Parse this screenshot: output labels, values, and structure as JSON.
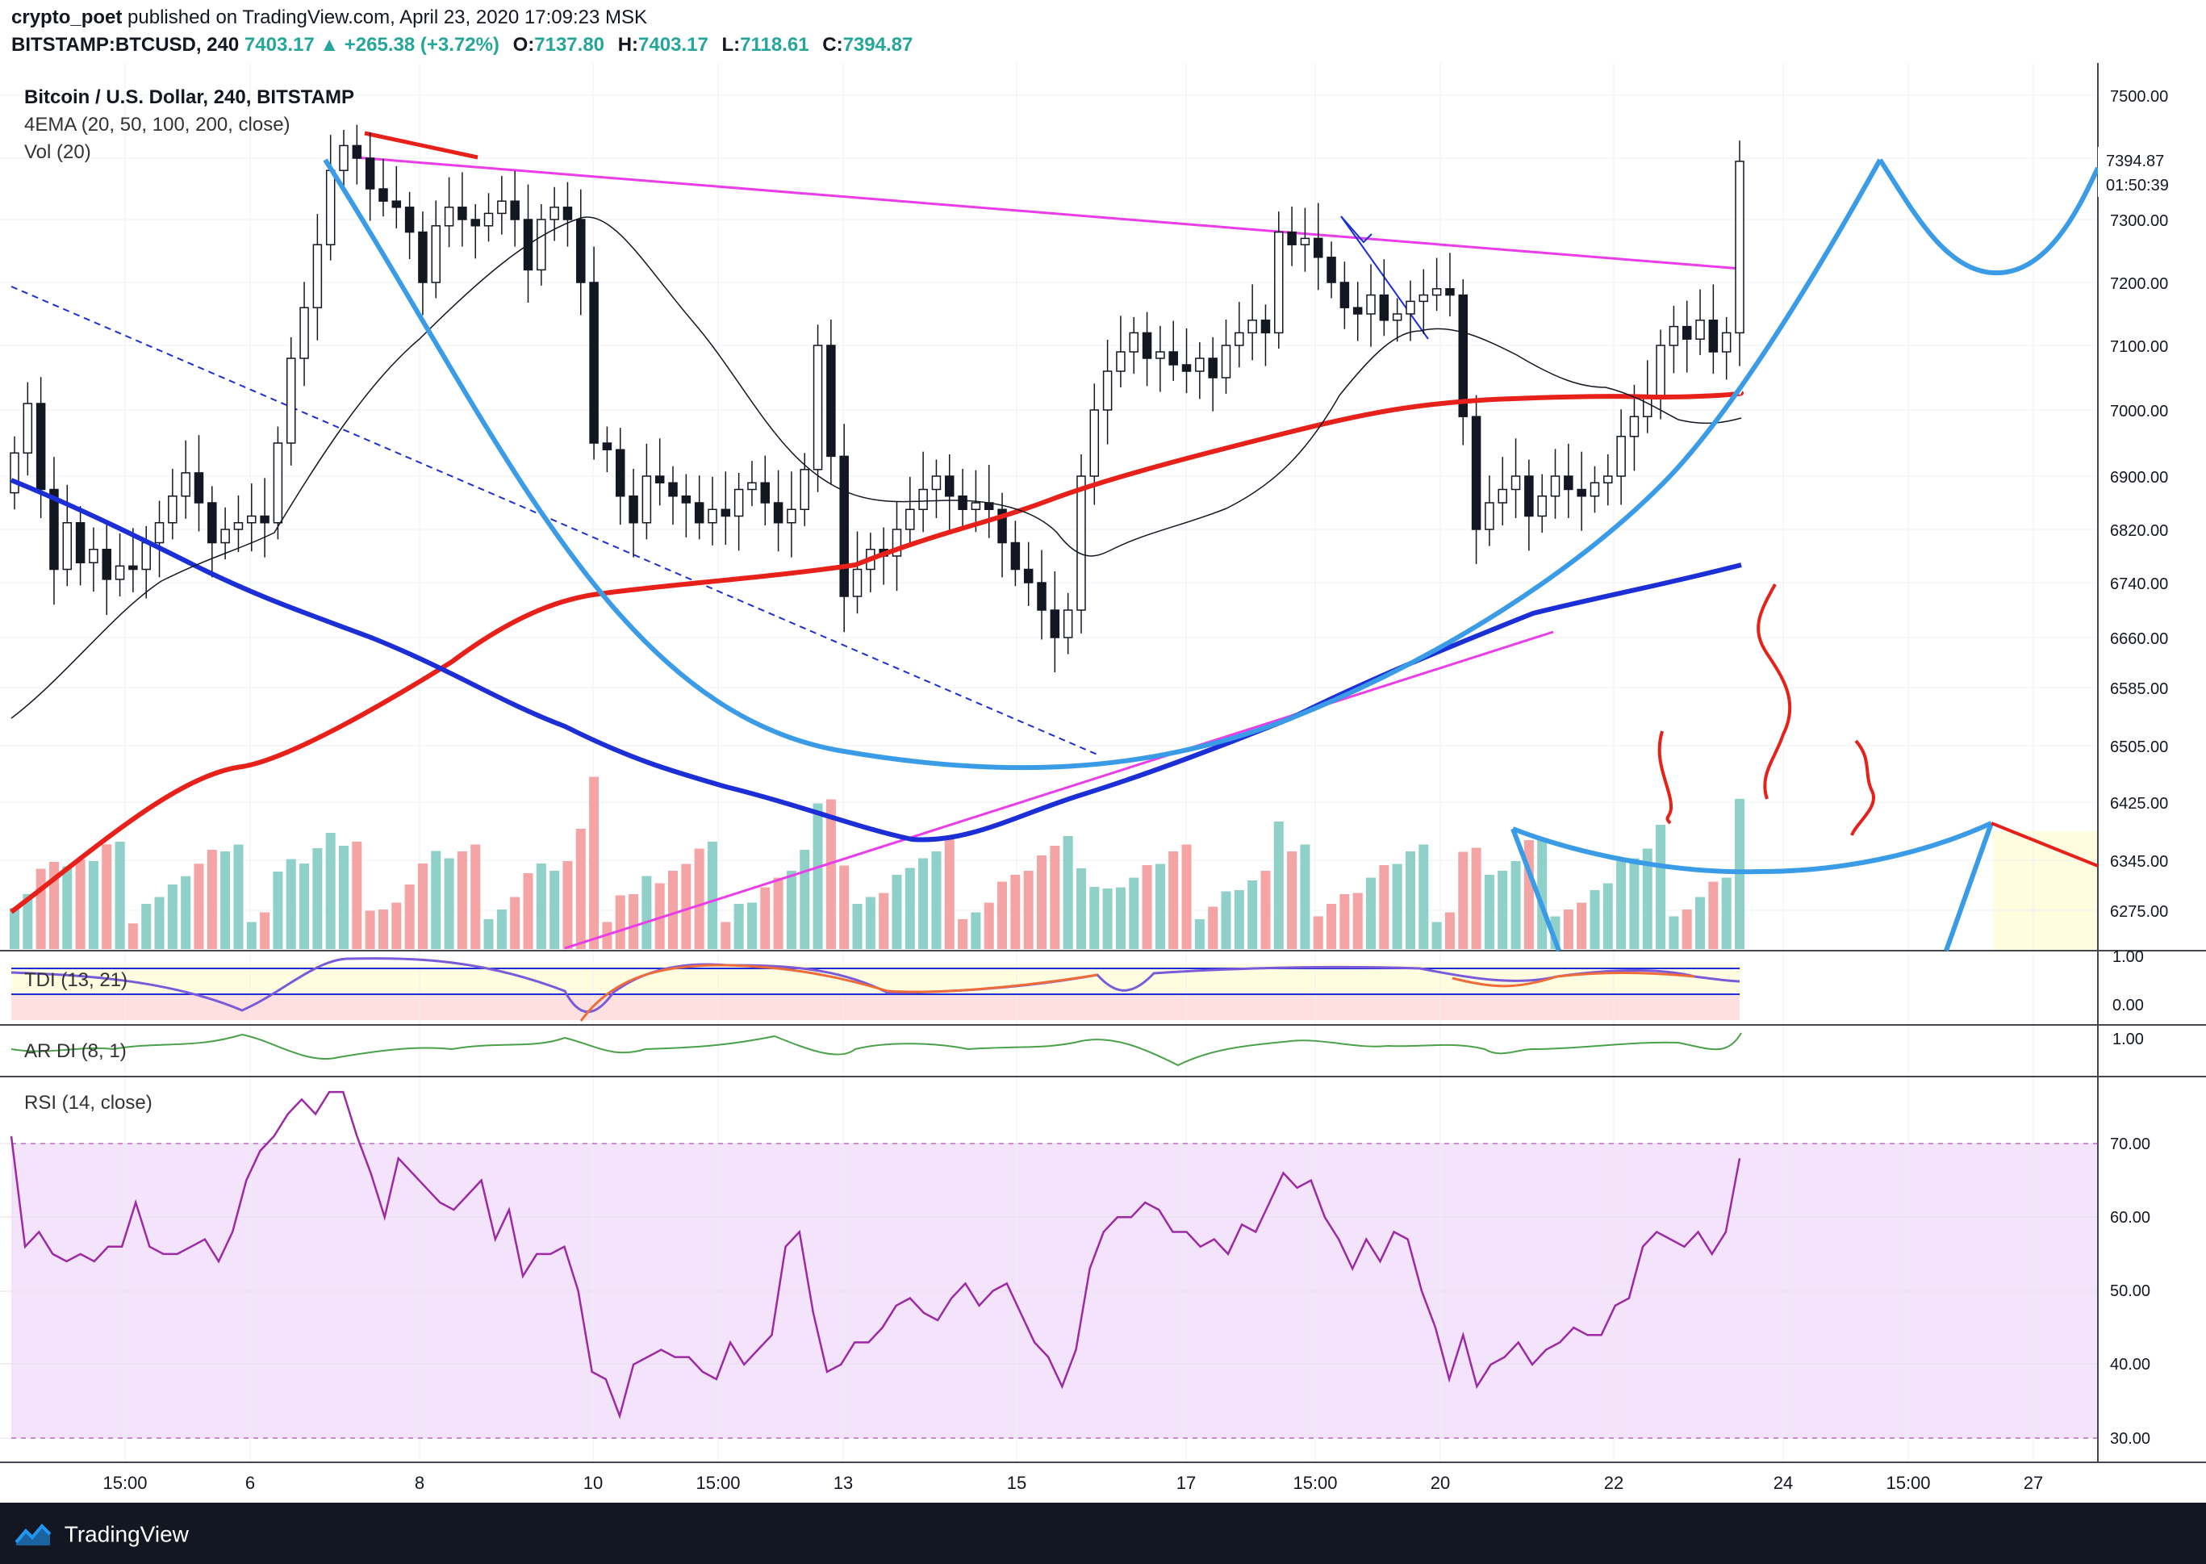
{
  "header": {
    "author": "crypto_poet",
    "published_text": "published on TradingView.com, April 23, 2020 17:09:23 MSK",
    "symbol": "BITSTAMP:BTCUSD, 240",
    "last": "7403.17",
    "change": "▲ +265.38 (+3.72%)",
    "o_label": "O:",
    "o": "7137.80",
    "h_label": "H:",
    "h": "7403.17",
    "l_label": "L:",
    "l": "7118.61",
    "c_label": "C:",
    "c": "7394.87"
  },
  "legends": {
    "title": "Bitcoin / U.S. Dollar, 240, BITSTAMP",
    "ema": "4EMA (20, 50, 100, 200, close)",
    "vol": "Vol (20)",
    "tdi": "TDI (13, 21)",
    "ardi": "AR DI (8, 1)",
    "rsi": "RSI (14, close)"
  },
  "price_badge": {
    "price": "7394.87",
    "countdown": "01:50:39"
  },
  "footer": {
    "brand": "TradingView"
  },
  "colors": {
    "up": "#26a69a",
    "down": "#ef5350",
    "ema_red": "#e8201a",
    "ema_blue": "#1c2fd6",
    "arc_blue": "#3a9be6",
    "magenta": "#ea3ce8",
    "rsi_line": "#9c2aa5",
    "rsi_fill": "#f3e3fb"
  },
  "chart_data": {
    "type": "candlestick",
    "title": "Bitcoin / U.S. Dollar, 240, BITSTAMP",
    "price_ticks": [
      7500,
      7400,
      7300,
      7200,
      7100,
      7000,
      6900,
      6820,
      6740,
      6660,
      6585,
      6505,
      6425,
      6345,
      6275
    ],
    "price_tick_labels": [
      "7500.00",
      "7300.00",
      "7200.00",
      "7100.00",
      "7000.00",
      "6900.00",
      "6820.00",
      "6740.00",
      "6660.00",
      "6585.00",
      "6505.00",
      "6425.00",
      "6345.00",
      "6275.00"
    ],
    "x_labels": [
      "15:00",
      "6",
      "8",
      "10",
      "15:00",
      "13",
      "15",
      "17",
      "15:00",
      "20",
      "22",
      "24",
      "15:00",
      "27"
    ],
    "tdi_labels": [
      "1.00",
      "0.00"
    ],
    "ardi_labels": [
      "1.00"
    ],
    "rsi_labels": [
      "70.00",
      "60.00",
      "50.00",
      "40.00",
      "30.00"
    ],
    "candles_close": [
      6935,
      7010,
      6880,
      6760,
      6830,
      6770,
      6790,
      6745,
      6765,
      6760,
      6800,
      6830,
      6870,
      6905,
      6860,
      6800,
      6820,
      6830,
      6840,
      6830,
      6950,
      7080,
      7160,
      7260,
      7380,
      7420,
      7400,
      7350,
      7330,
      7320,
      7280,
      7200,
      7290,
      7320,
      7300,
      7290,
      7310,
      7330,
      7300,
      7220,
      7300,
      7320,
      7300,
      7200,
      6950,
      6940,
      6870,
      6830,
      6900,
      6890,
      6870,
      6860,
      6830,
      6850,
      6840,
      6880,
      6890,
      6860,
      6830,
      6850,
      6910,
      7100,
      6930,
      6720,
      6760,
      6790,
      6780,
      6820,
      6850,
      6880,
      6900,
      6870,
      6850,
      6860,
      6850,
      6800,
      6760,
      6740,
      6700,
      6660,
      6700,
      6900,
      7000,
      7060,
      7090,
      7120,
      7080,
      7090,
      7070,
      7060,
      7080,
      7050,
      7100,
      7120,
      7140,
      7120,
      7280,
      7260,
      7270,
      7240,
      7200,
      7160,
      7150,
      7180,
      7140,
      7150,
      7170,
      7180,
      7190,
      7180,
      6990,
      6820,
      6860,
      6880,
      6900,
      6840,
      6870,
      6900,
      6880,
      6870,
      6890,
      6900,
      6960,
      6990,
      7020,
      7100,
      7130,
      7110,
      7140,
      7090,
      7120,
      7394.87
    ],
    "rsi_values": [
      71,
      56,
      58,
      55,
      54,
      55,
      54,
      56,
      56,
      62,
      56,
      55,
      55,
      56,
      57,
      54,
      58,
      65,
      69,
      71,
      74,
      76,
      74,
      77,
      77,
      71,
      66,
      60,
      68,
      66,
      64,
      62,
      61,
      63,
      65,
      57,
      61,
      52,
      55,
      55,
      56,
      50,
      39,
      38,
      33,
      40,
      41,
      42,
      41,
      41,
      39,
      38,
      43,
      40,
      42,
      44,
      56,
      58,
      47,
      39,
      40,
      43,
      43,
      45,
      48,
      49,
      47,
      46,
      49,
      51,
      48,
      50,
      51,
      47,
      43,
      41,
      37,
      42,
      53,
      58,
      60,
      60,
      62,
      61,
      58,
      58,
      56,
      57,
      55,
      59,
      58,
      62,
      66,
      64,
      65,
      60,
      57,
      53,
      57,
      54,
      58,
      57,
      50,
      45,
      38,
      44,
      37,
      40,
      41,
      43,
      40,
      42,
      43,
      45,
      44,
      44,
      48,
      49,
      56,
      58,
      57,
      56,
      58,
      55,
      58,
      68
    ]
  }
}
